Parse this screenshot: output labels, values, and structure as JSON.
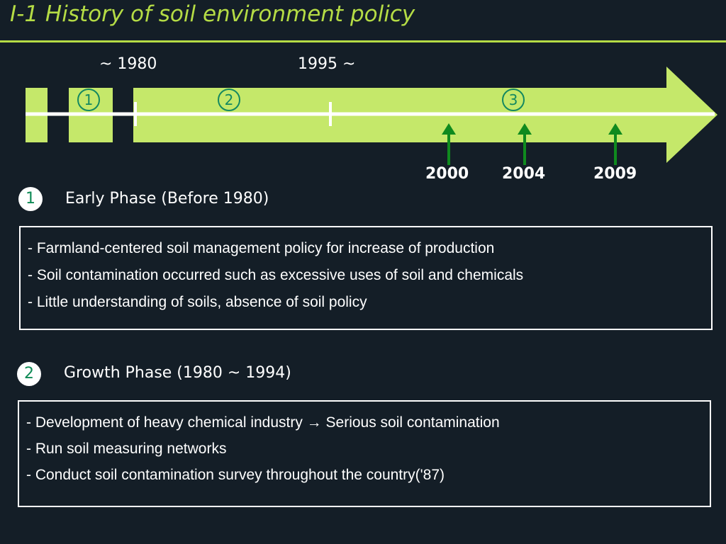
{
  "title": "I-1  History of soil environment policy",
  "timeline": {
    "label_1980": "~ 1980",
    "label_1995": "1995 ~",
    "phase_markers": [
      "1",
      "2",
      "3"
    ],
    "milestones": [
      "2000",
      "2004",
      "2009"
    ]
  },
  "colors": {
    "background": "#141e27",
    "accent": "#b5dc45",
    "arrow_fill": "#c5e86a",
    "badge_green": "#0e8a55",
    "milestone_arrow": "#0f8a1e"
  },
  "phases": [
    {
      "number": "1",
      "title": "Early Phase (Before 1980)",
      "items": [
        "- Farmland-centered soil management policy for increase of production",
        "- Soil contamination occurred such as excessive uses of soil and chemicals",
        "- Little understanding of soils, absence of soil policy"
      ]
    },
    {
      "number": "2",
      "title": "Growth Phase (1980 ~ 1994)",
      "items": [
        "- Development of heavy chemical industry → Serious soil contamination",
        "- Run soil measuring networks",
        "- Conduct soil contamination survey throughout the country('87)"
      ]
    }
  ]
}
